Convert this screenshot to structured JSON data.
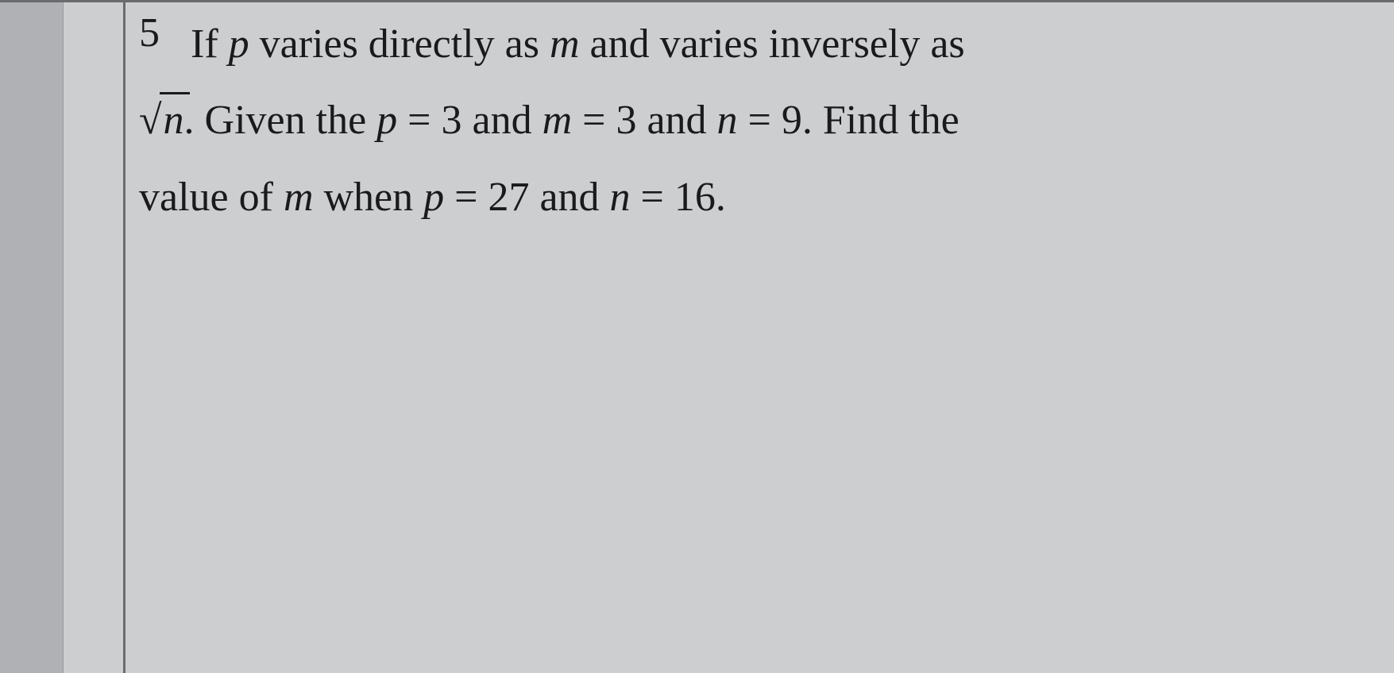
{
  "question": {
    "number": "5",
    "line1_part1": "If ",
    "line1_var1": "p",
    "line1_part2": " varies directly as ",
    "line1_var2": "m",
    "line1_part3": " and varies inversely as",
    "line2_sqrt_var": "n",
    "line2_part1": ".  Given the ",
    "line2_var1": "p",
    "line2_eq1": " = 3 and ",
    "line2_var2": "m",
    "line2_eq2": " = 3 and ",
    "line2_var3": "n",
    "line2_eq3": " = 9.  Find the",
    "line3_part1": "value of ",
    "line3_var1": "m",
    "line3_part2": " when ",
    "line3_var2": "p",
    "line3_eq1": " = 27 and ",
    "line3_var3": "n",
    "line3_eq2": " = 16."
  },
  "styling": {
    "background_color": "#cdced0",
    "left_margin_color": "#b0b1b4",
    "line_color": "#6a6b6e",
    "text_color": "#1a1a1c",
    "font_size": 52,
    "font_family": "Georgia, Times New Roman, serif"
  }
}
